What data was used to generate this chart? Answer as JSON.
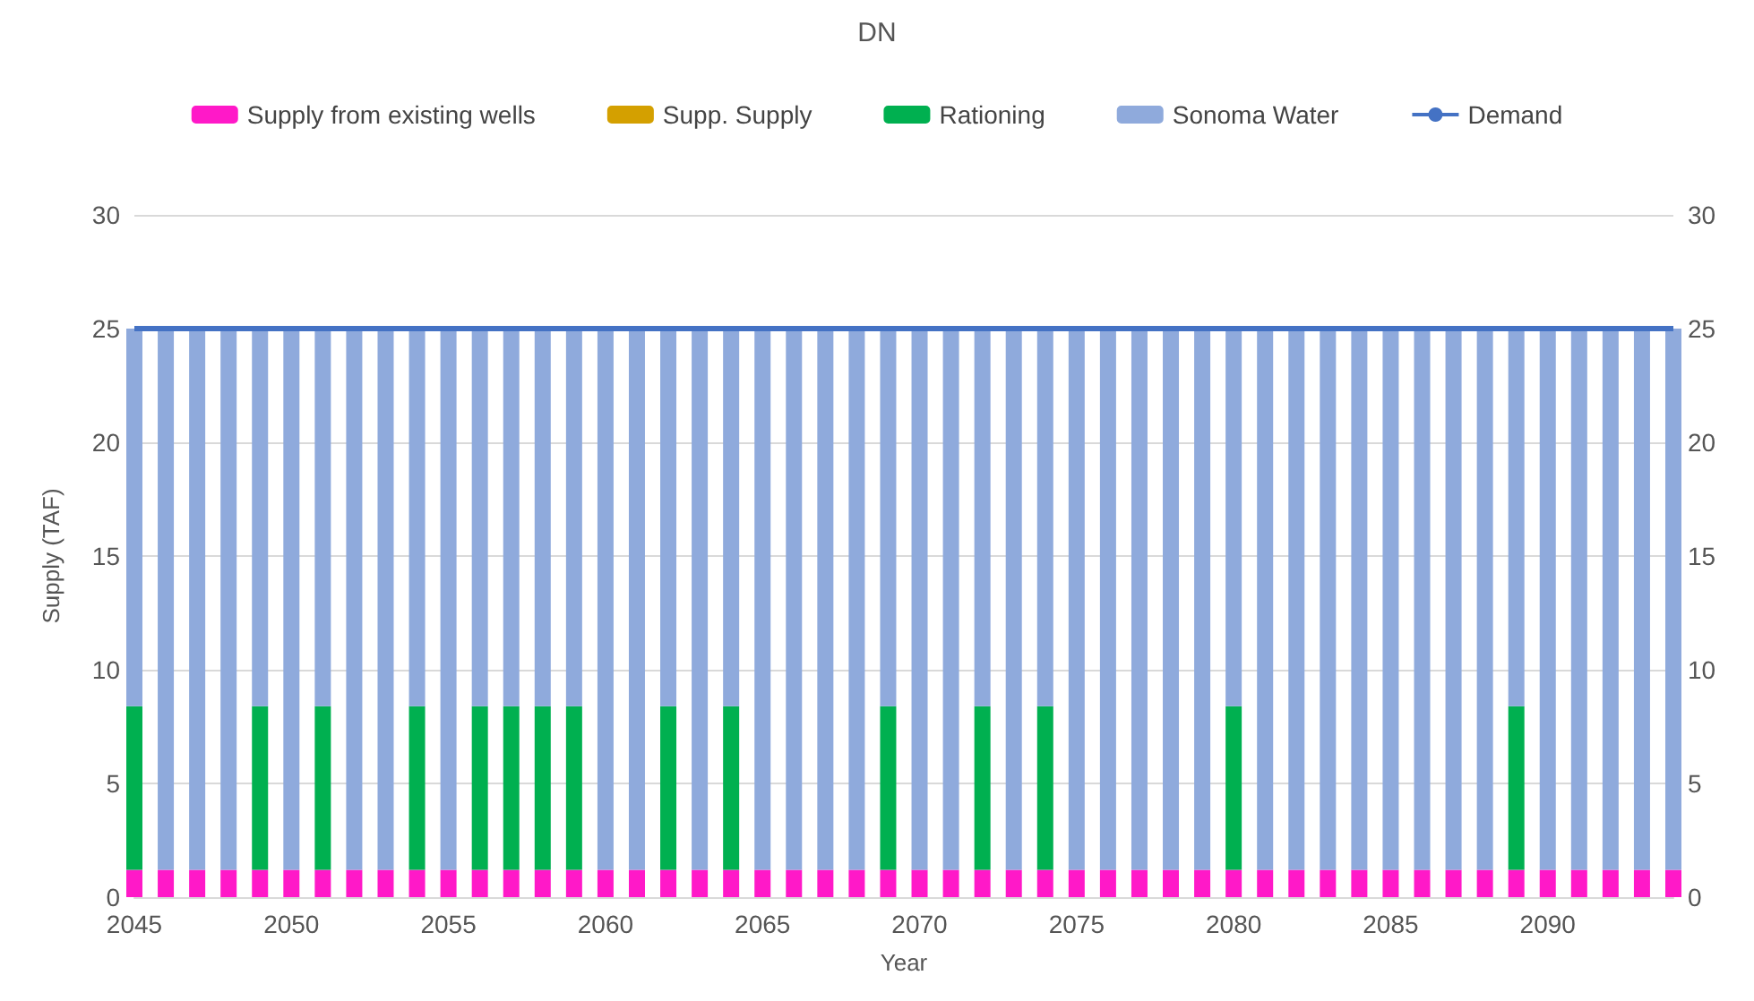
{
  "chart_data": {
    "type": "bar",
    "title": "DN",
    "xlabel": "Year",
    "ylabel": "Supply (TAF)",
    "stacked": true,
    "x": [
      2045,
      2046,
      2047,
      2048,
      2049,
      2050,
      2051,
      2052,
      2053,
      2054,
      2055,
      2056,
      2057,
      2058,
      2059,
      2060,
      2061,
      2062,
      2063,
      2064,
      2065,
      2066,
      2067,
      2068,
      2069,
      2070,
      2071,
      2072,
      2073,
      2074,
      2075,
      2076,
      2077,
      2078,
      2079,
      2080,
      2081,
      2082,
      2083,
      2084,
      2085,
      2086,
      2087,
      2088,
      2089,
      2090,
      2091,
      2092,
      2093,
      2094
    ],
    "series": [
      {
        "name": "Supply from existing wells",
        "color": "#ff19c8",
        "values": [
          1.2,
          1.2,
          1.2,
          1.2,
          1.2,
          1.2,
          1.2,
          1.2,
          1.2,
          1.2,
          1.2,
          1.2,
          1.2,
          1.2,
          1.2,
          1.2,
          1.2,
          1.2,
          1.2,
          1.2,
          1.2,
          1.2,
          1.2,
          1.2,
          1.2,
          1.2,
          1.2,
          1.2,
          1.2,
          1.2,
          1.2,
          1.2,
          1.2,
          1.2,
          1.2,
          1.2,
          1.2,
          1.2,
          1.2,
          1.2,
          1.2,
          1.2,
          1.2,
          1.2,
          1.2,
          1.2,
          1.2,
          1.2,
          1.2,
          1.2
        ]
      },
      {
        "name": "Supp. Supply",
        "color": "#d4a000",
        "values": [
          0,
          0,
          0,
          0,
          0,
          0,
          0,
          0,
          0,
          0,
          0,
          0,
          0,
          0,
          0,
          0,
          0,
          0,
          0,
          0,
          0,
          0,
          0,
          0,
          0,
          0,
          0,
          0,
          0,
          0,
          0,
          0,
          0,
          0,
          0,
          0,
          0,
          0,
          0,
          0,
          0,
          0,
          0,
          0,
          0,
          0,
          0,
          0,
          0,
          0
        ]
      },
      {
        "name": "Rationing",
        "color": "#00b050",
        "values": [
          7.2,
          0,
          0,
          0,
          7.2,
          0,
          7.2,
          0,
          0,
          7.2,
          0,
          7.2,
          7.2,
          7.2,
          7.2,
          0,
          0,
          7.2,
          0,
          7.2,
          0,
          0,
          0,
          0,
          7.2,
          0,
          0,
          7.2,
          0,
          7.2,
          0,
          0,
          0,
          0,
          0,
          7.2,
          0,
          0,
          0,
          0,
          0,
          0,
          0,
          0,
          7.2,
          0,
          0,
          0,
          0,
          0
        ]
      },
      {
        "name": "Sonoma Water",
        "color": "#8faadc",
        "values": [
          16.6,
          23.8,
          23.8,
          23.8,
          16.6,
          23.8,
          16.6,
          23.8,
          23.8,
          16.6,
          23.8,
          16.6,
          16.6,
          16.6,
          16.6,
          23.8,
          23.8,
          16.6,
          23.8,
          16.6,
          23.8,
          23.8,
          23.8,
          23.8,
          16.6,
          23.8,
          23.8,
          16.6,
          23.8,
          16.6,
          23.8,
          23.8,
          23.8,
          23.8,
          23.8,
          16.6,
          23.8,
          23.8,
          23.8,
          23.8,
          23.8,
          23.8,
          23.8,
          23.8,
          16.6,
          23.8,
          23.8,
          23.8,
          23.8,
          23.8
        ]
      },
      {
        "name": "Demand",
        "type": "line",
        "color": "#4472c4",
        "marker": "none",
        "x": [
          2045,
          2094
        ],
        "values": [
          25,
          25
        ]
      }
    ],
    "xlim": [
      2045,
      2094
    ],
    "xticks": [
      2045,
      2050,
      2055,
      2060,
      2065,
      2070,
      2075,
      2080,
      2085,
      2090
    ],
    "ylim": [
      0,
      30
    ],
    "yticks": [
      0,
      5,
      10,
      15,
      20,
      25,
      30
    ],
    "y2lim": [
      0,
      30
    ],
    "y2ticks": [
      0,
      5,
      10,
      15,
      20,
      25,
      30
    ],
    "grid": "y",
    "legend": "top"
  }
}
